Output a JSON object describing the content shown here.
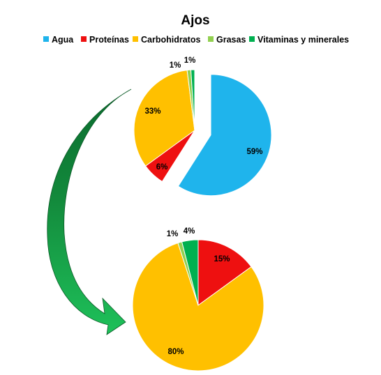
{
  "chart_data": [
    {
      "type": "pie",
      "title": "Ajos",
      "legend_position": "top",
      "categories": [
        "Agua",
        "Proteínas",
        "Carbohidratos",
        "Grasas",
        "Vitaminas y minerales"
      ],
      "colors": [
        "#1FB4EC",
        "#EE1010",
        "#FFC000",
        "#92D050",
        "#00B050"
      ],
      "values": [
        59,
        6,
        33,
        1,
        1
      ],
      "labels": [
        "59%",
        "6%",
        "33%",
        "1%",
        "1%"
      ],
      "exploded": "Agua"
    },
    {
      "type": "pie",
      "categories": [
        "Proteínas",
        "Carbohidratos",
        "Grasas",
        "Vitaminas y minerales"
      ],
      "colors": [
        "#EE1010",
        "#FFC000",
        "#92D050",
        "#00B050"
      ],
      "values": [
        15,
        80,
        1,
        4
      ],
      "labels": [
        "15%",
        "80%",
        "1%",
        "4%"
      ]
    }
  ],
  "arrow_color": "#00A651"
}
